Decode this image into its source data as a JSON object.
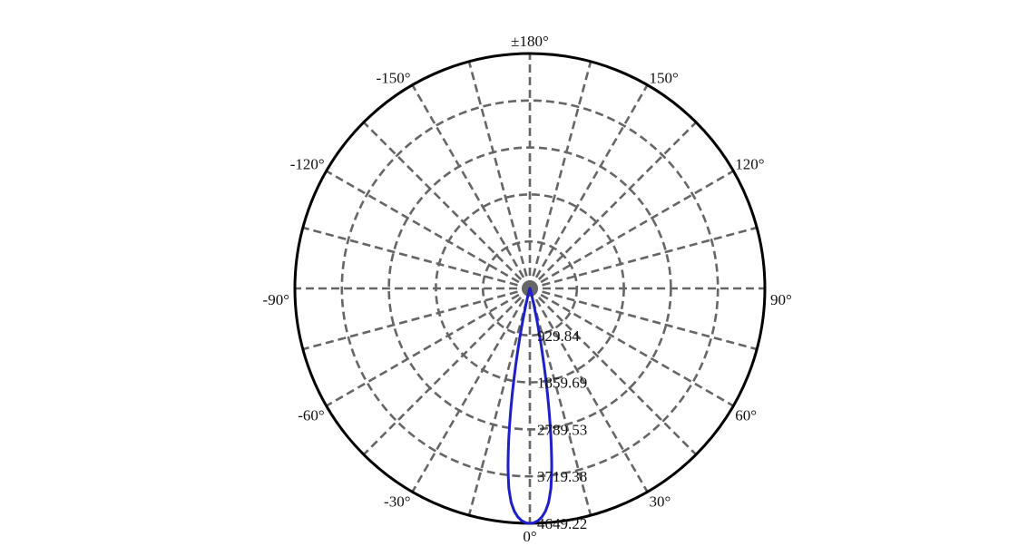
{
  "chart_data": {
    "type": "polar",
    "title": "",
    "radial_ticks": [
      "929.84",
      "1859.69",
      "2789.53",
      "3719.38",
      "4649.22"
    ],
    "radial_tick_values": [
      929.84,
      1859.69,
      2789.53,
      3719.38,
      4649.22
    ],
    "radial_max": 4649.22,
    "angle_labels": [
      {
        "angle": 0,
        "text": "0°"
      },
      {
        "angle": 30,
        "text": "30°"
      },
      {
        "angle": 60,
        "text": "60°"
      },
      {
        "angle": 90,
        "text": "90°"
      },
      {
        "angle": 120,
        "text": "120°"
      },
      {
        "angle": 150,
        "text": "150°"
      },
      {
        "angle": 180,
        "text": "±180°"
      },
      {
        "angle": -150,
        "text": "-150°"
      },
      {
        "angle": -120,
        "text": "-120°"
      },
      {
        "angle": -90,
        "text": "-90°"
      },
      {
        "angle": -60,
        "text": "-60°"
      },
      {
        "angle": -30,
        "text": "-30°"
      }
    ],
    "angle_grid_step_deg": 15,
    "grid": true,
    "series": [
      {
        "color": "#1f1fc8",
        "angles": [
          0,
          1,
          2,
          3,
          4,
          5,
          6,
          7,
          8,
          9,
          10,
          11,
          12,
          13,
          14,
          15,
          16,
          18,
          20,
          25,
          30,
          40,
          60,
          90,
          120,
          180
        ],
        "values": [
          4649.22,
          4638,
          4600,
          4530,
          4420,
          4250,
          3980,
          3550,
          3000,
          2400,
          1800,
          1250,
          800,
          460,
          250,
          130,
          70,
          30,
          15,
          8,
          5,
          3,
          2,
          1,
          0,
          0
        ]
      }
    ]
  }
}
